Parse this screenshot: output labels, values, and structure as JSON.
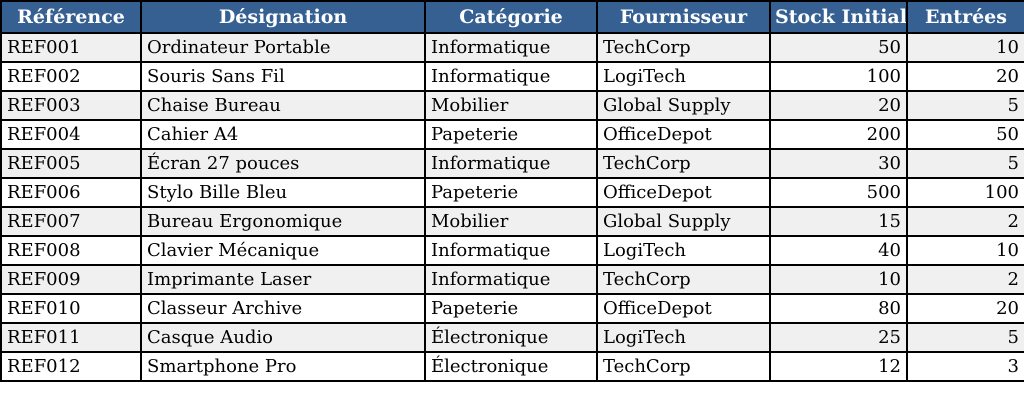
{
  "table": {
    "name": "inventory-table",
    "columns": [
      {
        "key": "reference",
        "label": "Référence",
        "align": "left"
      },
      {
        "key": "designation",
        "label": "Désignation",
        "align": "left"
      },
      {
        "key": "categorie",
        "label": "Catégorie",
        "align": "left"
      },
      {
        "key": "fournisseur",
        "label": "Fournisseur",
        "align": "left"
      },
      {
        "key": "stock_initial",
        "label": "Stock Initial",
        "align": "right"
      },
      {
        "key": "entrees",
        "label": "Entrées",
        "align": "right"
      }
    ],
    "rows": [
      [
        "REF001",
        "Ordinateur Portable",
        "Informatique",
        "TechCorp",
        50,
        10
      ],
      [
        "REF002",
        "Souris Sans Fil",
        "Informatique",
        "LogiTech",
        100,
        20
      ],
      [
        "REF003",
        "Chaise Bureau",
        "Mobilier",
        "Global Supply",
        20,
        5
      ],
      [
        "REF004",
        "Cahier A4",
        "Papeterie",
        "OfficeDepot",
        200,
        50
      ],
      [
        "REF005",
        "Écran 27 pouces",
        "Informatique",
        "TechCorp",
        30,
        5
      ],
      [
        "REF006",
        "Stylo Bille Bleu",
        "Papeterie",
        "OfficeDepot",
        500,
        100
      ],
      [
        "REF007",
        "Bureau Ergonomique",
        "Mobilier",
        "Global Supply",
        15,
        2
      ],
      [
        "REF008",
        "Clavier Mécanique",
        "Informatique",
        "LogiTech",
        40,
        10
      ],
      [
        "REF009",
        "Imprimante Laser",
        "Informatique",
        "TechCorp",
        10,
        2
      ],
      [
        "REF010",
        "Classeur Archive",
        "Papeterie",
        "OfficeDepot",
        80,
        20
      ],
      [
        "REF011",
        "Casque Audio",
        "Électronique",
        "LogiTech",
        25,
        5
      ],
      [
        "REF012",
        "Smartphone Pro",
        "Électronique",
        "TechCorp",
        12,
        3
      ]
    ],
    "colors": {
      "header_bg": "#366092",
      "header_text": "#ffffff",
      "row_odd_bg": "#f0f0f0",
      "row_even_bg": "#ffffff",
      "border": "#000000"
    }
  }
}
